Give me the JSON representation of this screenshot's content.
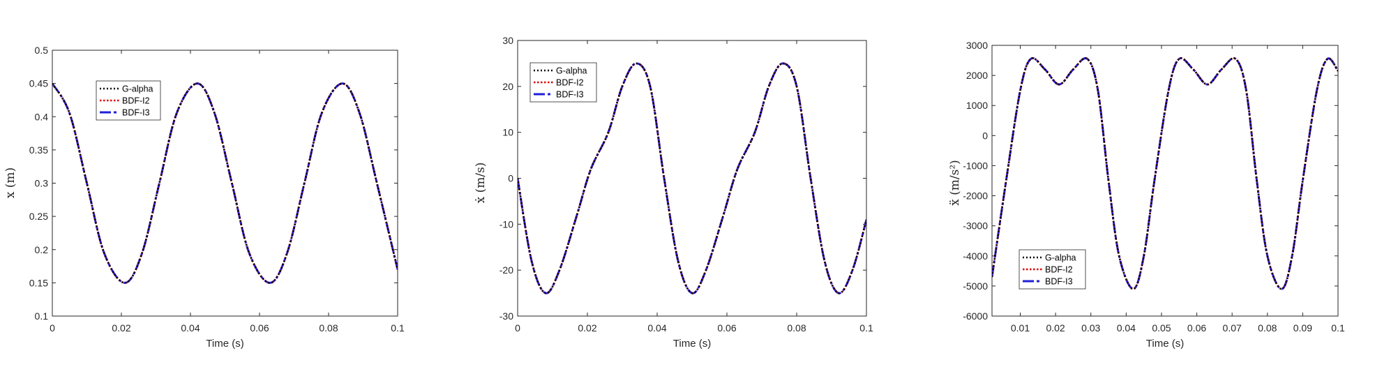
{
  "colors": {
    "g_alpha": "#000000",
    "bdf_i2": "#e00000",
    "bdf_i3": "#1f1fd8",
    "axis": "#262626"
  },
  "chart_data": [
    {
      "type": "line",
      "xlabel": "Time (s)",
      "ylabel": "x (m)",
      "xlim": [
        0,
        0.1
      ],
      "ylim": [
        0.1,
        0.5
      ],
      "xticks": [
        "0",
        "0.02",
        "0.04",
        "0.06",
        "0.08",
        "0.1"
      ],
      "yticks": [
        "0.1",
        "0.15",
        "0.2",
        "0.25",
        "0.3",
        "0.35",
        "0.4",
        "0.45",
        "0.5"
      ],
      "legend": [
        "G-alpha",
        "BDF-I2",
        "BDF-I3"
      ],
      "legend_position": "upper-left-inside",
      "x": [
        0,
        0.005,
        0.01,
        0.015,
        0.021,
        0.026,
        0.031,
        0.036,
        0.042,
        0.047,
        0.052,
        0.057,
        0.063,
        0.068,
        0.073,
        0.078,
        0.084,
        0.089,
        0.094,
        0.1
      ],
      "series": [
        {
          "name": "G-alpha",
          "values": [
            0.45,
            0.405,
            0.3,
            0.195,
            0.15,
            0.195,
            0.3,
            0.405,
            0.45,
            0.405,
            0.3,
            0.195,
            0.15,
            0.195,
            0.3,
            0.405,
            0.45,
            0.405,
            0.3,
            0.17
          ]
        },
        {
          "name": "BDF-I2",
          "values": [
            0.45,
            0.405,
            0.3,
            0.195,
            0.15,
            0.195,
            0.3,
            0.405,
            0.45,
            0.405,
            0.3,
            0.195,
            0.15,
            0.195,
            0.3,
            0.405,
            0.45,
            0.405,
            0.3,
            0.17
          ]
        },
        {
          "name": "BDF-I3",
          "values": [
            0.45,
            0.405,
            0.3,
            0.195,
            0.15,
            0.195,
            0.3,
            0.405,
            0.45,
            0.405,
            0.3,
            0.195,
            0.15,
            0.195,
            0.3,
            0.405,
            0.45,
            0.405,
            0.3,
            0.17
          ]
        }
      ]
    },
    {
      "type": "line",
      "xlabel": "Time (s)",
      "ylabel": "ẋ (m/s)",
      "xlim": [
        0,
        0.1
      ],
      "ylim": [
        -30,
        30
      ],
      "xticks": [
        "0",
        "0.02",
        "0.04",
        "0.06",
        "0.08",
        "0.1"
      ],
      "yticks": [
        "-30",
        "-20",
        "-10",
        "0",
        "10",
        "20",
        "30"
      ],
      "legend": [
        "G-alpha",
        "BDF-I2",
        "BDF-I3"
      ],
      "legend_position": "upper-left",
      "x": [
        0,
        0.004,
        0.008,
        0.012,
        0.017,
        0.021,
        0.026,
        0.03,
        0.034,
        0.038,
        0.042,
        0.046,
        0.05,
        0.054,
        0.059,
        0.063,
        0.068,
        0.072,
        0.076,
        0.08,
        0.084,
        0.088,
        0.092,
        0.096,
        0.1
      ],
      "series": [
        {
          "name": "G-alpha",
          "values": [
            0,
            -18,
            -25,
            -20,
            -8,
            2,
            10,
            20,
            25,
            20,
            0,
            -18,
            -25,
            -20,
            -8,
            2,
            10,
            20,
            25,
            20,
            0,
            -18,
            -25,
            -20,
            -9
          ]
        },
        {
          "name": "BDF-I2",
          "values": [
            0,
            -18,
            -25,
            -20,
            -8,
            2,
            10,
            20,
            25,
            20,
            0,
            -18,
            -25,
            -20,
            -8,
            2,
            10,
            20,
            25,
            20,
            0,
            -18,
            -25,
            -20,
            -9
          ]
        },
        {
          "name": "BDF-I3",
          "values": [
            0,
            -18,
            -25,
            -20,
            -8,
            2,
            10,
            20,
            25,
            20,
            0,
            -18,
            -25,
            -20,
            -8,
            2,
            10,
            20,
            25,
            20,
            0,
            -18,
            -25,
            -20,
            -9
          ]
        }
      ]
    },
    {
      "type": "line",
      "xlabel": "Time (s)",
      "ylabel": "ẍ (m/s²)",
      "xlim": [
        0.002,
        0.1
      ],
      "ylim": [
        -6000,
        3000
      ],
      "xticks": [
        "0.01",
        "0.02",
        "0.03",
        "0.04",
        "0.05",
        "0.06",
        "0.07",
        "0.08",
        "0.09",
        "0.1"
      ],
      "yticks": [
        "-6000",
        "-5000",
        "-4000",
        "-3000",
        "-2000",
        "-1000",
        "0",
        "1000",
        "2000",
        "3000"
      ],
      "legend": [
        "G-alpha",
        "BDF-I2",
        "BDF-I3"
      ],
      "legend_position": "lower-left",
      "x": [
        0.002,
        0.006,
        0.01,
        0.013,
        0.017,
        0.021,
        0.025,
        0.029,
        0.032,
        0.035,
        0.038,
        0.042,
        0.045,
        0.048,
        0.052,
        0.055,
        0.059,
        0.063,
        0.067,
        0.071,
        0.074,
        0.077,
        0.08,
        0.084,
        0.087,
        0.09,
        0.094,
        0.097,
        0.1
      ],
      "series": [
        {
          "name": "G-alpha",
          "values": [
            -4700,
            -1500,
            1500,
            2550,
            2200,
            1700,
            2200,
            2550,
            1500,
            -1500,
            -4000,
            -5100,
            -4000,
            -1500,
            1500,
            2550,
            2200,
            1700,
            2200,
            2550,
            1500,
            -1500,
            -4000,
            -5100,
            -4000,
            -1500,
            1500,
            2550,
            2150
          ]
        },
        {
          "name": "BDF-I2",
          "values": [
            -4700,
            -1500,
            1500,
            2550,
            2200,
            1700,
            2200,
            2550,
            1500,
            -1500,
            -4000,
            -5100,
            -4000,
            -1500,
            1500,
            2550,
            2200,
            1700,
            2200,
            2550,
            1500,
            -1500,
            -4000,
            -5100,
            -4000,
            -1500,
            1500,
            2550,
            2150
          ]
        },
        {
          "name": "BDF-I3",
          "values": [
            -4700,
            -1500,
            1500,
            2550,
            2200,
            1700,
            2200,
            2550,
            1500,
            -1500,
            -4000,
            -5100,
            -4000,
            -1500,
            1500,
            2550,
            2200,
            1700,
            2200,
            2550,
            1500,
            -1500,
            -4000,
            -5100,
            -4000,
            -1500,
            1500,
            2550,
            2150
          ]
        }
      ]
    }
  ]
}
